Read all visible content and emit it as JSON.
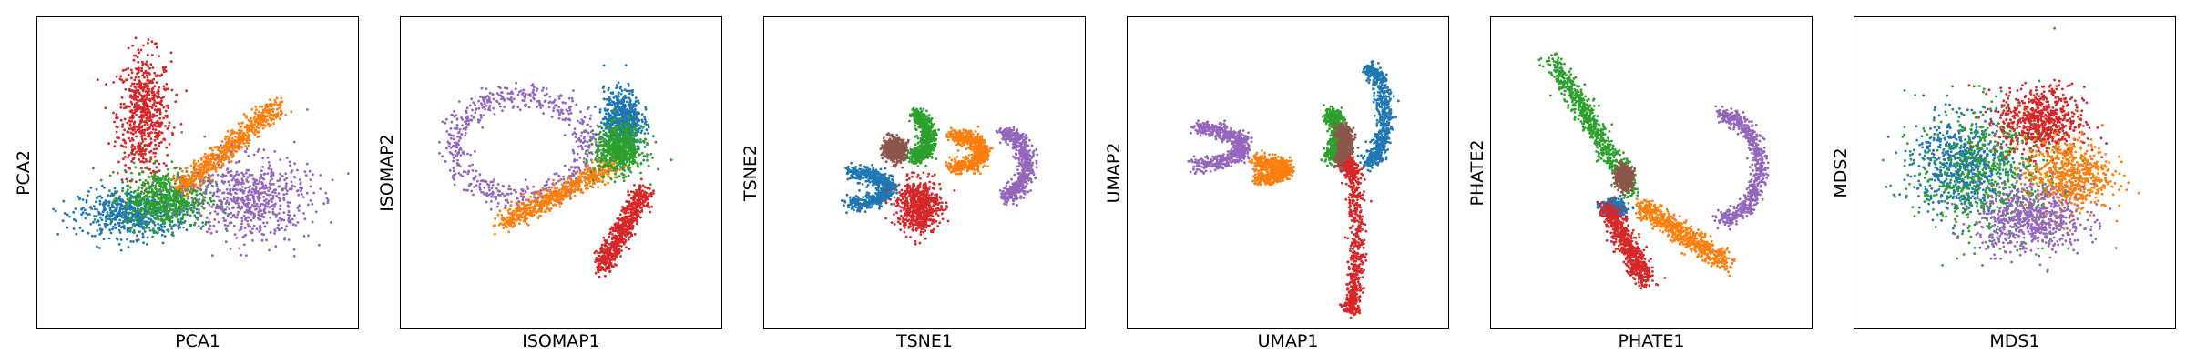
{
  "figure": {
    "colors": {
      "blue": "#1f77b4",
      "orange": "#ff7f0e",
      "green": "#2ca02c",
      "red": "#d62728",
      "purple": "#9467bd",
      "brown": "#8c564b"
    },
    "axes": {
      "ticks": "none",
      "grid": false,
      "legend": "none"
    }
  },
  "chart_data": [
    {
      "type": "scatter",
      "xlabel": "PCA1",
      "ylabel": "PCA2",
      "series": [
        {
          "color": "#d62728",
          "center": [
            -2.0,
            2.2
          ],
          "spread": [
            1.0,
            2.4
          ],
          "shape": "blob"
        },
        {
          "color": "#1f77b4",
          "center": [
            -2.4,
            -1.6
          ],
          "spread": [
            2.0,
            0.9
          ],
          "shape": "blob"
        },
        {
          "color": "#2ca02c",
          "center": [
            -1.2,
            -1.0
          ],
          "spread": [
            1.6,
            1.1
          ],
          "shape": "blob"
        },
        {
          "color": "#ff7f0e",
          "center": [
            1.2,
            1.0
          ],
          "spread": [
            1.8,
            1.6
          ],
          "shape": "elongated"
        },
        {
          "color": "#9467bd",
          "center": [
            2.0,
            -1.0
          ],
          "spread": [
            2.2,
            1.6
          ],
          "shape": "blob"
        }
      ]
    },
    {
      "type": "scatter",
      "xlabel": "ISOMAP1",
      "ylabel": "ISOMAP2",
      "series": [
        {
          "color": "#9467bd",
          "center": [
            -1.5,
            1.0
          ],
          "spread": [
            2.5,
            2.0
          ],
          "shape": "ring"
        },
        {
          "color": "#ff7f0e",
          "center": [
            0.0,
            -0.8
          ],
          "spread": [
            2.2,
            1.2
          ],
          "shape": "elongated"
        },
        {
          "color": "#1f77b4",
          "center": [
            2.3,
            2.0
          ],
          "spread": [
            0.7,
            1.2
          ],
          "shape": "blob"
        },
        {
          "color": "#2ca02c",
          "center": [
            2.2,
            0.9
          ],
          "spread": [
            0.9,
            0.9
          ],
          "shape": "blob"
        },
        {
          "color": "#d62728",
          "center": [
            2.3,
            -2.2
          ],
          "spread": [
            0.8,
            1.5
          ],
          "shape": "elongated"
        }
      ]
    },
    {
      "type": "scatter",
      "xlabel": "TSNE1",
      "ylabel": "TSNE2",
      "series": [
        {
          "color": "#1f77b4",
          "center": [
            -2.8,
            -0.6
          ],
          "spread": [
            1.6,
            0.6
          ],
          "shape": "arc"
        },
        {
          "color": "#d62728",
          "center": [
            -0.2,
            -1.3
          ],
          "spread": [
            0.8,
            1.0
          ],
          "shape": "blob"
        },
        {
          "color": "#2ca02c",
          "center": [
            -0.4,
            1.4
          ],
          "spread": [
            0.6,
            0.8
          ],
          "shape": "arc"
        },
        {
          "color": "#8c564b",
          "center": [
            -1.1,
            0.9
          ],
          "spread": [
            0.4,
            0.4
          ],
          "shape": "blob"
        },
        {
          "color": "#ff7f0e",
          "center": [
            1.0,
            0.8
          ],
          "spread": [
            1.3,
            0.6
          ],
          "shape": "arc"
        },
        {
          "color": "#9467bd",
          "center": [
            3.0,
            0.3
          ],
          "spread": [
            0.9,
            1.2
          ],
          "shape": "arc"
        }
      ]
    },
    {
      "type": "scatter",
      "xlabel": "UMAP1",
      "ylabel": "UMAP2",
      "series": [
        {
          "color": "#9467bd",
          "center": [
            -3.5,
            1.0
          ],
          "spread": [
            2.0,
            0.7
          ],
          "shape": "curve"
        },
        {
          "color": "#ff7f0e",
          "center": [
            -1.2,
            0.1
          ],
          "spread": [
            1.2,
            0.3
          ],
          "shape": "curve"
        },
        {
          "color": "#2ca02c",
          "center": [
            1.6,
            1.4
          ],
          "spread": [
            0.3,
            0.8
          ],
          "shape": "curve"
        },
        {
          "color": "#8c564b",
          "center": [
            2.0,
            1.0
          ],
          "spread": [
            0.2,
            0.6
          ],
          "shape": "curve"
        },
        {
          "color": "#1f77b4",
          "center": [
            3.0,
            2.2
          ],
          "spread": [
            0.7,
            1.8
          ],
          "shape": "curve"
        },
        {
          "color": "#d62728",
          "center": [
            2.3,
            -2.5
          ],
          "spread": [
            0.3,
            2.8
          ],
          "shape": "curve"
        }
      ]
    },
    {
      "type": "scatter",
      "xlabel": "PHATE1",
      "ylabel": "PHATE2",
      "series": [
        {
          "color": "#2ca02c",
          "center": [
            -2.2,
            1.8
          ],
          "spread": [
            1.5,
            2.5
          ],
          "shape": "line"
        },
        {
          "color": "#8c564b",
          "center": [
            -1.0,
            -0.2
          ],
          "spread": [
            0.3,
            0.4
          ],
          "shape": "blob"
        },
        {
          "color": "#1f77b4",
          "center": [
            -1.4,
            -1.4
          ],
          "spread": [
            0.4,
            0.3
          ],
          "shape": "blob"
        },
        {
          "color": "#d62728",
          "center": [
            -0.9,
            -2.8
          ],
          "spread": [
            0.7,
            1.4
          ],
          "shape": "line"
        },
        {
          "color": "#ff7f0e",
          "center": [
            1.2,
            -2.4
          ],
          "spread": [
            1.6,
            1.1
          ],
          "shape": "line"
        },
        {
          "color": "#9467bd",
          "center": [
            2.6,
            0.2
          ],
          "spread": [
            1.6,
            2.0
          ],
          "shape": "arc"
        }
      ]
    },
    {
      "type": "scatter",
      "xlabel": "MDS1",
      "ylabel": "MDS2",
      "series": [
        {
          "color": "#1f77b4",
          "center": [
            -2.0,
            0.3
          ],
          "spread": [
            1.8,
            1.8
          ],
          "shape": "blob"
        },
        {
          "color": "#2ca02c",
          "center": [
            -1.0,
            0.0
          ],
          "spread": [
            2.6,
            2.6
          ],
          "shape": "blob"
        },
        {
          "color": "#d62728",
          "center": [
            1.0,
            2.0
          ],
          "spread": [
            1.6,
            1.3
          ],
          "shape": "blob"
        },
        {
          "color": "#ff7f0e",
          "center": [
            2.0,
            -0.1
          ],
          "spread": [
            1.6,
            1.4
          ],
          "shape": "blob"
        },
        {
          "color": "#9467bd",
          "center": [
            0.6,
            -1.8
          ],
          "spread": [
            2.0,
            1.3
          ],
          "shape": "blob"
        }
      ]
    }
  ]
}
